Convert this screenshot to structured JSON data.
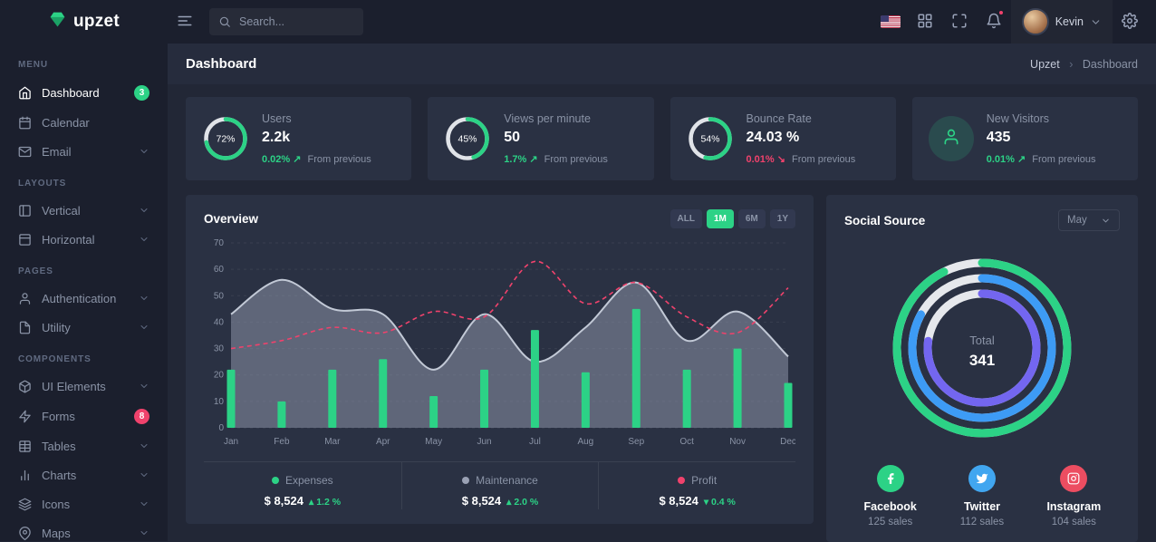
{
  "colors": {
    "accent_green": "#2cd286",
    "danger_red": "#f0426c",
    "info_blue": "#3d9bf5",
    "purple": "#7366f0",
    "topbar_bg": "#1b1f2d",
    "content_bg": "#222736",
    "card_bg": "#2a3143"
  },
  "topbar": {
    "logo_text": "upzet",
    "search_placeholder": "Search...",
    "user_name": "Kevin"
  },
  "sidebar": {
    "sections": [
      {
        "label": "MENU",
        "items": [
          {
            "label": "Dashboard",
            "icon": "home",
            "badge": "3",
            "badge_color": "#2cd286",
            "active": true
          },
          {
            "label": "Calendar",
            "icon": "calendar"
          },
          {
            "label": "Email",
            "icon": "mail",
            "expandable": true
          }
        ]
      },
      {
        "label": "LAYOUTS",
        "items": [
          {
            "label": "Vertical",
            "icon": "layout-vertical",
            "expandable": true
          },
          {
            "label": "Horizontal",
            "icon": "layout-horizontal",
            "expandable": true
          }
        ]
      },
      {
        "label": "PAGES",
        "items": [
          {
            "label": "Authentication",
            "icon": "user",
            "expandable": true
          },
          {
            "label": "Utility",
            "icon": "file",
            "expandable": true
          }
        ]
      },
      {
        "label": "COMPONENTS",
        "items": [
          {
            "label": "UI Elements",
            "icon": "box",
            "expandable": true
          },
          {
            "label": "Forms",
            "icon": "zap",
            "badge": "8",
            "badge_color": "#f0426c"
          },
          {
            "label": "Tables",
            "icon": "table",
            "expandable": true
          },
          {
            "label": "Charts",
            "icon": "bar-chart",
            "expandable": true
          },
          {
            "label": "Icons",
            "icon": "layers",
            "expandable": true
          },
          {
            "label": "Maps",
            "icon": "map-pin",
            "expandable": true
          }
        ]
      }
    ]
  },
  "page_header": {
    "title": "Dashboard",
    "breadcrumb": [
      "Upzet",
      "Dashboard"
    ],
    "breadcrumb_separator": "›"
  },
  "stats": [
    {
      "label": "Users",
      "value": "2.2k",
      "percent": 72,
      "percent_label": "72%",
      "delta": "0.02%",
      "delta_arrow": "↗",
      "delta_dir": "up",
      "delta_color": "#2cd286",
      "note": "From previous"
    },
    {
      "label": "Views per minute",
      "value": "50",
      "percent": 45,
      "percent_label": "45%",
      "delta": "1.7%",
      "delta_arrow": "↗",
      "delta_dir": "up",
      "delta_color": "#2cd286",
      "note": "From previous"
    },
    {
      "label": "Bounce Rate",
      "value": "24.03 %",
      "percent": 54,
      "percent_label": "54%",
      "delta": "0.01%",
      "delta_arrow": "↘",
      "delta_dir": "down",
      "delta_color": "#f0426c",
      "note": "From previous"
    },
    {
      "label": "New Visitors",
      "value": "435",
      "icon": "user",
      "delta": "0.01%",
      "delta_arrow": "↗",
      "delta_dir": "up",
      "delta_color": "#2cd286",
      "note": "From previous"
    }
  ],
  "overview": {
    "title": "Overview",
    "range_buttons": [
      "ALL",
      "1M",
      "6M",
      "1Y"
    ],
    "active_range": "1M",
    "legend": [
      {
        "name": "Expenses",
        "amount": "$ 8,524",
        "arrow": "▴",
        "delta": "1.2 %",
        "delta_color": "#2cd286",
        "color": "#2cd286"
      },
      {
        "name": "Maintenance",
        "amount": "$ 8,524",
        "arrow": "▴",
        "delta": "2.0 %",
        "delta_color": "#2cd286",
        "color": "#9aa1b4"
      },
      {
        "name": "Profit",
        "amount": "$ 8,524",
        "arrow": "▾",
        "delta": "0.4 %",
        "delta_color": "#2cd286",
        "color": "#f0426c"
      }
    ]
  },
  "social": {
    "title": "Social Source",
    "period_selected": "May",
    "items": [
      {
        "name": "Facebook",
        "sales": "125 sales",
        "color": "#2cd286",
        "icon": "facebook"
      },
      {
        "name": "Twitter",
        "sales": "112 sales",
        "color": "#41a6f0",
        "icon": "twitter"
      },
      {
        "name": "Instagram",
        "sales": "104 sales",
        "color": "#ec4d61",
        "icon": "instagram"
      }
    ]
  },
  "chart_data": [
    {
      "type": "mixed",
      "title": "Overview",
      "x": [
        "Jan",
        "Feb",
        "Mar",
        "Apr",
        "May",
        "Jun",
        "Jul",
        "Aug",
        "Sep",
        "Oct",
        "Nov",
        "Dec"
      ],
      "ylim": [
        0,
        70
      ],
      "yticks": [
        0,
        10,
        20,
        30,
        40,
        50,
        60,
        70
      ],
      "grid": true,
      "legend_position": "bottom",
      "series": [
        {
          "name": "Maintenance",
          "type": "area",
          "color": "#9aa1b4",
          "values": [
            43,
            56,
            45,
            43,
            22,
            43,
            25,
            38,
            55,
            33,
            44,
            27
          ]
        },
        {
          "name": "Expenses",
          "type": "bar",
          "color": "#2cd286",
          "values": [
            22,
            10,
            22,
            26,
            12,
            22,
            37,
            21,
            45,
            22,
            30,
            17
          ]
        },
        {
          "name": "Profit",
          "type": "line",
          "dashed": true,
          "color": "#f0426c",
          "values": [
            30,
            33,
            38,
            36,
            44,
            42,
            63,
            47,
            55,
            42,
            36,
            53
          ]
        }
      ]
    },
    {
      "type": "radial",
      "title": "Social Source",
      "total_label": "Total",
      "total": 341,
      "rings": [
        {
          "name": "Facebook",
          "value": 125,
          "color": "#2cd286"
        },
        {
          "name": "Twitter",
          "value": 112,
          "color": "#3d9bf5"
        },
        {
          "name": "Instagram",
          "value": 104,
          "color": "#7366f0"
        }
      ]
    }
  ]
}
